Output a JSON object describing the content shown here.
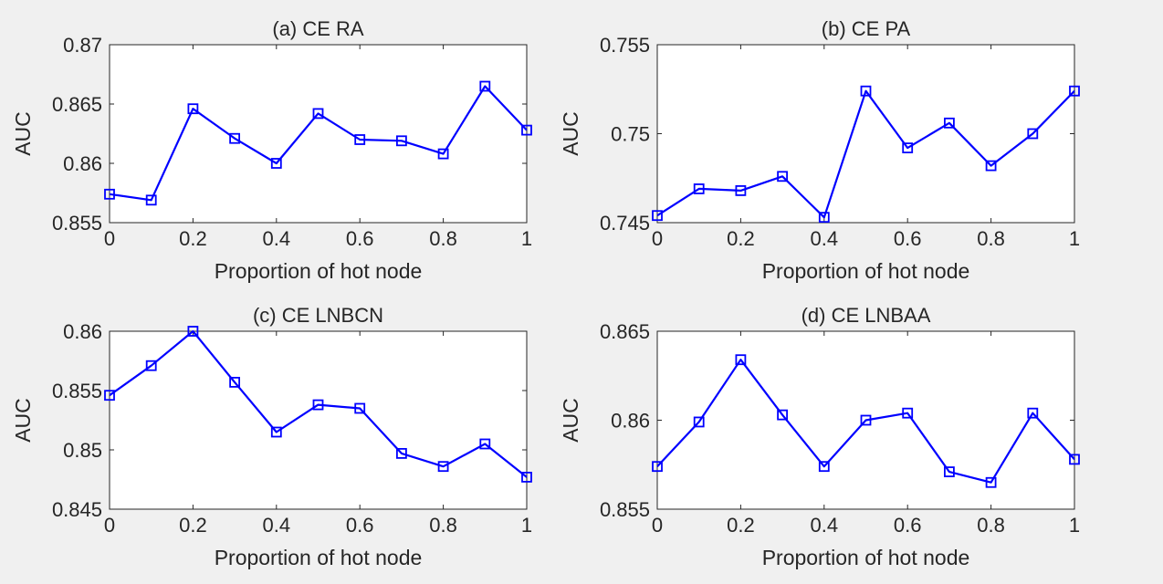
{
  "colors": {
    "figure_background": "#f0f0f0",
    "axes_background": "#ffffff",
    "axis_line": "#262626",
    "series": "#0000ff"
  },
  "chart_data": [
    {
      "type": "line",
      "title": "(a) CE RA",
      "xlabel": "Proportion of hot node",
      "ylabel": "AUC",
      "xlim": [
        0,
        1
      ],
      "ylim": [
        0.855,
        0.87
      ],
      "xticks": [
        0,
        0.2,
        0.4,
        0.6,
        0.8,
        1
      ],
      "xtick_labels": [
        "0",
        "0.2",
        "0.4",
        "0.6",
        "0.8",
        "1"
      ],
      "yticks": [
        0.855,
        0.86,
        0.865,
        0.87
      ],
      "ytick_labels": [
        "0.855",
        "0.86",
        "0.865",
        "0.87"
      ],
      "grid": false,
      "marker": "square",
      "series": [
        {
          "x": [
            0,
            0.1,
            0.2,
            0.3,
            0.4,
            0.5,
            0.6,
            0.7,
            0.8,
            0.9,
            1
          ],
          "values": [
            0.8574,
            0.8569,
            0.8646,
            0.8621,
            0.86,
            0.8642,
            0.862,
            0.8619,
            0.8608,
            0.8665,
            0.8628
          ]
        }
      ]
    },
    {
      "type": "line",
      "title": "(b) CE PA",
      "xlabel": "Proportion of hot node",
      "ylabel": "AUC",
      "xlim": [
        0,
        1
      ],
      "ylim": [
        0.745,
        0.755
      ],
      "xticks": [
        0,
        0.2,
        0.4,
        0.6,
        0.8,
        1
      ],
      "xtick_labels": [
        "0",
        "0.2",
        "0.4",
        "0.6",
        "0.8",
        "1"
      ],
      "yticks": [
        0.745,
        0.75,
        0.755
      ],
      "ytick_labels": [
        "0.745",
        "0.75",
        "0.755"
      ],
      "grid": false,
      "marker": "square",
      "series": [
        {
          "x": [
            0,
            0.1,
            0.2,
            0.3,
            0.4,
            0.5,
            0.6,
            0.7,
            0.8,
            0.9,
            1
          ],
          "values": [
            0.7454,
            0.7469,
            0.7468,
            0.7476,
            0.7453,
            0.7524,
            0.7492,
            0.7506,
            0.7482,
            0.75,
            0.7524
          ]
        }
      ]
    },
    {
      "type": "line",
      "title": "(c) CE LNBCN",
      "xlabel": "Proportion of hot node",
      "ylabel": "AUC",
      "xlim": [
        0,
        1
      ],
      "ylim": [
        0.845,
        0.86
      ],
      "xticks": [
        0,
        0.2,
        0.4,
        0.6,
        0.8,
        1
      ],
      "xtick_labels": [
        "0",
        "0.2",
        "0.4",
        "0.6",
        "0.8",
        "1"
      ],
      "yticks": [
        0.845,
        0.85,
        0.855,
        0.86
      ],
      "ytick_labels": [
        "0.845",
        "0.85",
        "0.855",
        "0.86"
      ],
      "grid": false,
      "marker": "square",
      "series": [
        {
          "x": [
            0,
            0.1,
            0.2,
            0.3,
            0.4,
            0.5,
            0.6,
            0.7,
            0.8,
            0.9,
            1
          ],
          "values": [
            0.8546,
            0.8571,
            0.86,
            0.8557,
            0.8515,
            0.8538,
            0.8535,
            0.8497,
            0.8486,
            0.8505,
            0.8477
          ]
        }
      ]
    },
    {
      "type": "line",
      "title": "(d) CE LNBAA",
      "xlabel": "Proportion of hot node",
      "ylabel": "AUC",
      "xlim": [
        0,
        1
      ],
      "ylim": [
        0.855,
        0.865
      ],
      "xticks": [
        0,
        0.2,
        0.4,
        0.6,
        0.8,
        1
      ],
      "xtick_labels": [
        "0",
        "0.2",
        "0.4",
        "0.6",
        "0.8",
        "1"
      ],
      "yticks": [
        0.855,
        0.86,
        0.865
      ],
      "ytick_labels": [
        "0.855",
        "0.86",
        "0.865"
      ],
      "grid": false,
      "marker": "square",
      "series": [
        {
          "x": [
            0,
            0.1,
            0.2,
            0.3,
            0.4,
            0.5,
            0.6,
            0.7,
            0.8,
            0.9,
            1
          ],
          "values": [
            0.8574,
            0.8599,
            0.8634,
            0.8603,
            0.8574,
            0.86,
            0.8604,
            0.8571,
            0.8565,
            0.8604,
            0.8578
          ]
        }
      ]
    }
  ]
}
